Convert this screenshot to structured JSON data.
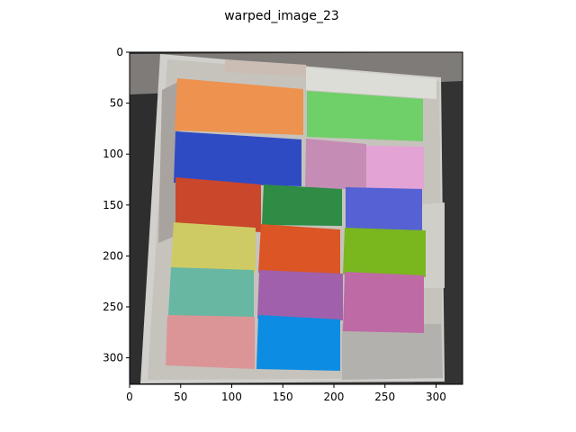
{
  "figure": {
    "title": "warped_image_23"
  },
  "axes": {
    "x_range": [
      0,
      326
    ],
    "y_range": [
      0,
      326
    ],
    "x_ticks": [
      0,
      50,
      100,
      150,
      200,
      250,
      300
    ],
    "y_ticks": [
      0,
      50,
      100,
      150,
      200,
      250,
      300
    ]
  },
  "image": {
    "subject": "paint color swatch sheet, warped",
    "swatch_colors": {
      "orange": "#ED924F",
      "light_green": "#6FCF68",
      "royal_blue": "#2F4BC4",
      "mauve": "#C58DB5",
      "light_pink": "#E3A3D5",
      "brick_red": "#C9472B",
      "dark_green": "#2E8C45",
      "periwinkle": "#5661D3",
      "mustard": "#CFCB64",
      "red_orange": "#DB5525",
      "lime": "#7AB61E",
      "teal": "#67B7A2",
      "purple": "#A060AB",
      "magenta_pink": "#BE6AA5",
      "rose": "#DB9597",
      "sky_blue": "#0C8CE3"
    }
  }
}
